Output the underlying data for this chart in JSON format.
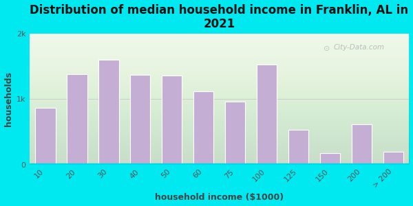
{
  "title": "Distribution of median household income in Franklin, AL in\n2021",
  "xlabel": "household income ($1000)",
  "ylabel": "households",
  "bar_color": "#c4aed4",
  "background_outer": "#00e8f0",
  "plot_bg": "#eef7e8",
  "bottom_strip_color": "#00d8e8",
  "categories": [
    "10",
    "20",
    "30",
    "40",
    "50",
    "60",
    "75",
    "100",
    "125",
    "150",
    "200",
    "> 200"
  ],
  "values": [
    870,
    1380,
    1600,
    1370,
    1360,
    1120,
    960,
    1530,
    530,
    180,
    620,
    200
  ],
  "ylim": [
    0,
    2000
  ],
  "yticks": [
    0,
    1000,
    2000
  ],
  "ytick_labels": [
    "0",
    "1k",
    "2k"
  ],
  "watermark": "City-Data.com",
  "title_fontsize": 12,
  "axis_label_fontsize": 9,
  "tick_fontsize": 8,
  "figsize": [
    6.0,
    3.0
  ],
  "dpi": 100
}
